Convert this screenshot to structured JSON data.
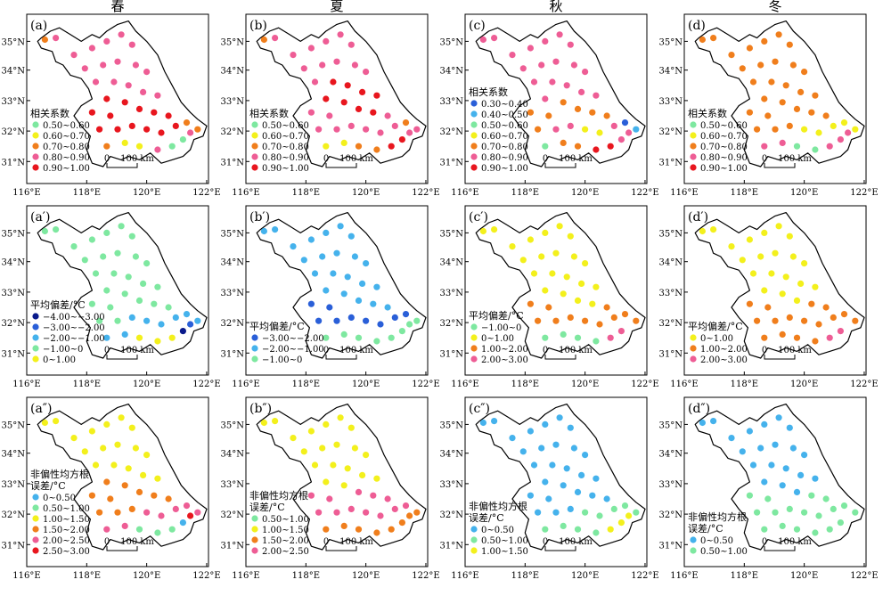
{
  "seasons": [
    "春",
    "夏",
    "秋",
    "冬"
  ],
  "ticks": {
    "lat": [
      "35°N",
      "34°N",
      "33°N",
      "32°N",
      "31°N"
    ],
    "lon": [
      "116°E",
      "118°E",
      "120°E",
      "122°E"
    ]
  },
  "scale_bar": {
    "zero": "0",
    "distance": "100 km"
  },
  "category_colors": {
    "navy": "#0a1a8c",
    "blue": "#2a5fd8",
    "lightblue": "#45b2ec",
    "green": "#7ee8a0",
    "yellow": "#f3f01c",
    "orange": "#f07e1c",
    "pink": "#ee5d95",
    "red": "#e8161e"
  },
  "rows": [
    {
      "legend_title": "相关系数",
      "panels": [
        {
          "label": "(a)",
          "legend": [
            {
              "color": "green",
              "text": "0.50~0.60"
            },
            {
              "color": "yellow",
              "text": "0.60~0.70"
            },
            {
              "color": "orange",
              "text": "0.70~0.80"
            },
            {
              "color": "pink",
              "text": "0.80~0.90"
            },
            {
              "color": "red",
              "text": "0.90~1.00"
            }
          ],
          "dots": "opppppppppppppppprrrrrrrrrrrrroooyypggp"
        },
        {
          "label": "(b)",
          "legend": [
            {
              "color": "green",
              "text": "0.50~0.60"
            },
            {
              "color": "yellow",
              "text": "0.60~0.70"
            },
            {
              "color": "orange",
              "text": "0.70~0.80"
            },
            {
              "color": "pink",
              "text": "0.80~0.90"
            },
            {
              "color": "red",
              "text": "0.90~1.00"
            }
          ],
          "dots": "opppppppppppprrrrrrrrpppppppppopyyoorrp"
        },
        {
          "label": "(c)",
          "legend": [
            {
              "color": "blue",
              "text": "0.30~0.40"
            },
            {
              "color": "lightblue",
              "text": "0.40~0.50"
            },
            {
              "color": "green",
              "text": "0.50~0.60"
            },
            {
              "color": "yellow",
              "text": "0.60~0.70"
            },
            {
              "color": "orange",
              "text": "0.70~0.80"
            },
            {
              "color": "pink",
              "text": "0.80~0.90"
            },
            {
              "color": "red",
              "text": "0.90~1.00"
            }
          ],
          "dots": "ppppppppppppppppppoooooooppyypbcgoorrpp"
        },
        {
          "label": "(d)",
          "legend": [
            {
              "color": "green",
              "text": "0.50~0.60"
            },
            {
              "color": "yellow",
              "text": "0.60~0.70"
            },
            {
              "color": "orange",
              "text": "0.70~0.80"
            },
            {
              "color": "pink",
              "text": "0.80~0.90"
            },
            {
              "color": "red",
              "text": "0.90~1.00"
            }
          ],
          "dots": "oooooooooooooooooooooooooooyyyyyppggppp"
        }
      ]
    },
    {
      "legend_title": "平均偏差/°C",
      "panels": [
        {
          "label": "(a′)",
          "legend": [
            {
              "color": "navy",
              "text": "−4.00~−3.00"
            },
            {
              "color": "blue",
              "text": "−3.00~−2.00"
            },
            {
              "color": "lightblue",
              "text": "−2.00~−1.00"
            },
            {
              "color": "green",
              "text": "−1.00~0"
            },
            {
              "color": "yellow",
              "text": "0~1.00"
            }
          ],
          "dots": "ggggggggggggggggggggggggggccccccccyyynb"
        },
        {
          "label": "(b′)",
          "legend": [
            {
              "color": "blue",
              "text": "−3.00~−2.00"
            },
            {
              "color": "lightblue",
              "text": "−2.00~−1.00"
            },
            {
              "color": "green",
              "text": "−1.00~0"
            }
          ],
          "dots": "ccccccccccccccccccccccbbbbbbbbbgggggggg"
        },
        {
          "label": "(c′)",
          "legend": [
            {
              "color": "green",
              "text": "−1.00~0"
            },
            {
              "color": "yellow",
              "text": "0~1.00"
            },
            {
              "color": "orange",
              "text": "1.00~2.00"
            },
            {
              "color": "pink",
              "text": "2.00~3.00"
            }
          ],
          "dots": "yyyyyyyyyyyyyyyyyyyyyoooooooooooggggpp"
        },
        {
          "label": "(d′)",
          "legend": [
            {
              "color": "yellow",
              "text": "0~1.00"
            },
            {
              "color": "orange",
              "text": "1.00~2.00"
            },
            {
              "color": "pink",
              "text": "2.00~3.00"
            }
          ],
          "dots": "yyyyyyyyyyyyyyyyyyyyoooooooooooooooopp"
        }
      ]
    },
    {
      "legend_title": "非偏性均方根误差/°C",
      "panels": [
        {
          "label": "(a″)",
          "legend": [
            {
              "color": "lightblue",
              "text": "0~0.50"
            },
            {
              "color": "green",
              "text": "0.50~1.00"
            },
            {
              "color": "yellow",
              "text": "1.00~1.50"
            },
            {
              "color": "orange",
              "text": "1.50~2.00"
            },
            {
              "color": "pink",
              "text": "2.00~2.50"
            },
            {
              "color": "red",
              "text": "2.50~3.00"
            }
          ],
          "dots": "yyyyyyyyyyyyyyyyyoooooooooopppppppgggcr"
        },
        {
          "label": "(b″)",
          "legend": [
            {
              "color": "green",
              "text": "0.50~1.00"
            },
            {
              "color": "yellow",
              "text": "1.00~1.50"
            },
            {
              "color": "orange",
              "text": "1.50~2.00"
            },
            {
              "color": "pink",
              "text": "2.00~2.50"
            }
          ],
          "dots": "yyyyyyyyyyyyyyyyyyyppppppppppppoooooooo"
        },
        {
          "label": "(c″)",
          "legend": [
            {
              "color": "lightblue",
              "text": "0~0.50"
            },
            {
              "color": "green",
              "text": "0.50~1.00"
            },
            {
              "color": "yellow",
              "text": "1.00~1.50"
            }
          ],
          "dots": "cccccccccccccccccccccccccccgggggggggyyy"
        },
        {
          "label": "(d″)",
          "legend": [
            {
              "color": "lightblue",
              "text": "0~0.50"
            },
            {
              "color": "green",
              "text": "0.50~1.00"
            }
          ],
          "dots": "ccccccccccccccccccccgggggggggggggggggg"
        }
      ]
    }
  ]
}
